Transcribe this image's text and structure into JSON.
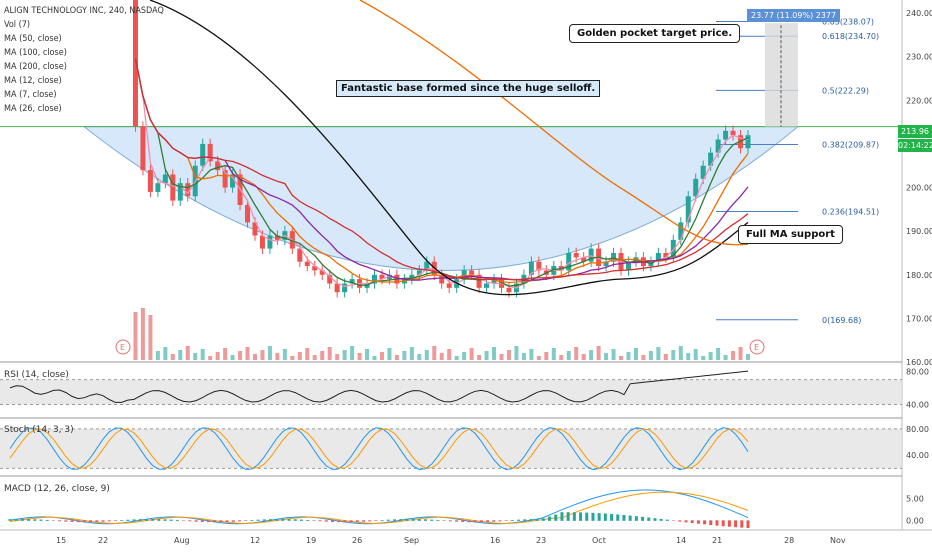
{
  "legend": {
    "title": "ALIGN TECHNOLOGY INC, 240, NASDAQ",
    "lines": [
      "Vol (7)",
      "MA (50, close)",
      "MA (100, close)",
      "MA (200, close)",
      "MA (12, close)",
      "MA (7, close)",
      "MA (26, close)"
    ]
  },
  "annotations": {
    "base_note": "Fantastic base formed since the huge selloff.",
    "golden_pocket": "Golden pocket target price.",
    "ma_support": "Full MA support",
    "target_box": "23.77 (11.09%) 2377"
  },
  "price_tags": {
    "last": "213.96",
    "countdown": "02:14:22"
  },
  "panes": {
    "rsi": "RSI (14, close)",
    "stoch": "Stoch (14, 3, 3)",
    "macd": "MACD (12, 26, close, 9)"
  },
  "colors": {
    "up": "#26a69a",
    "down": "#ef5350",
    "fill": "#cfe5f8",
    "ma50": "#8e24aa",
    "ma100": "#d32f2f",
    "ma200": "#111111",
    "ma12": "#2e7d32",
    "ma7": "#f48fb1",
    "ma26": "#ef6c00"
  },
  "chart_data": {
    "type": "line",
    "x_ticks": [
      "15",
      "22",
      "Aug",
      "12",
      "19",
      "26",
      "Sep",
      "16",
      "23",
      "Oct",
      "14",
      "21",
      "28",
      "Nov"
    ],
    "y_ticks": [
      "240.00",
      "230.00",
      "220.00",
      "210.00",
      "200.00",
      "190.00",
      "180.00",
      "170.00",
      "160.00"
    ],
    "ylim": [
      160,
      243
    ],
    "fib_levels": [
      {
        "label": "0.65(238.07)",
        "value": 238.07
      },
      {
        "label": "0.618(234.70)",
        "value": 234.7
      },
      {
        "label": "0.5(222.29)",
        "value": 222.29
      },
      {
        "label": "0.382(209.87)",
        "value": 209.87
      },
      {
        "label": "0.236(194.51)",
        "value": 194.51
      },
      {
        "label": "0(169.68)",
        "value": 169.68
      }
    ],
    "closes": [
      245,
      214,
      204,
      199,
      201,
      203,
      197,
      201,
      198,
      205,
      210,
      206,
      204,
      200,
      203,
      196,
      192,
      189,
      186,
      189,
      188,
      190,
      186,
      183,
      182,
      181,
      180,
      178,
      176,
      178,
      179,
      177,
      178,
      180,
      179,
      180,
      178,
      179,
      180,
      181,
      183,
      180,
      178,
      177,
      179,
      181,
      180,
      177,
      178,
      179,
      177,
      176,
      178,
      180,
      183,
      181,
      180,
      182,
      181,
      185,
      184,
      183,
      186,
      182,
      183,
      185,
      181,
      183,
      184,
      182,
      183,
      185,
      184,
      188,
      192,
      198,
      202,
      205,
      208,
      211,
      213,
      212,
      209,
      212
    ],
    "rsi": {
      "y_ticks": [
        "80.00",
        "40.00"
      ],
      "ylim": [
        25,
        90
      ]
    },
    "stoch": {
      "y_ticks": [
        "80.00",
        "40.00"
      ],
      "ylim": [
        10,
        95
      ]
    },
    "macd": {
      "y_ticks": [
        "5.00",
        "0.00"
      ],
      "ylim": [
        -2,
        10
      ]
    },
    "earnings_marker": "E"
  }
}
